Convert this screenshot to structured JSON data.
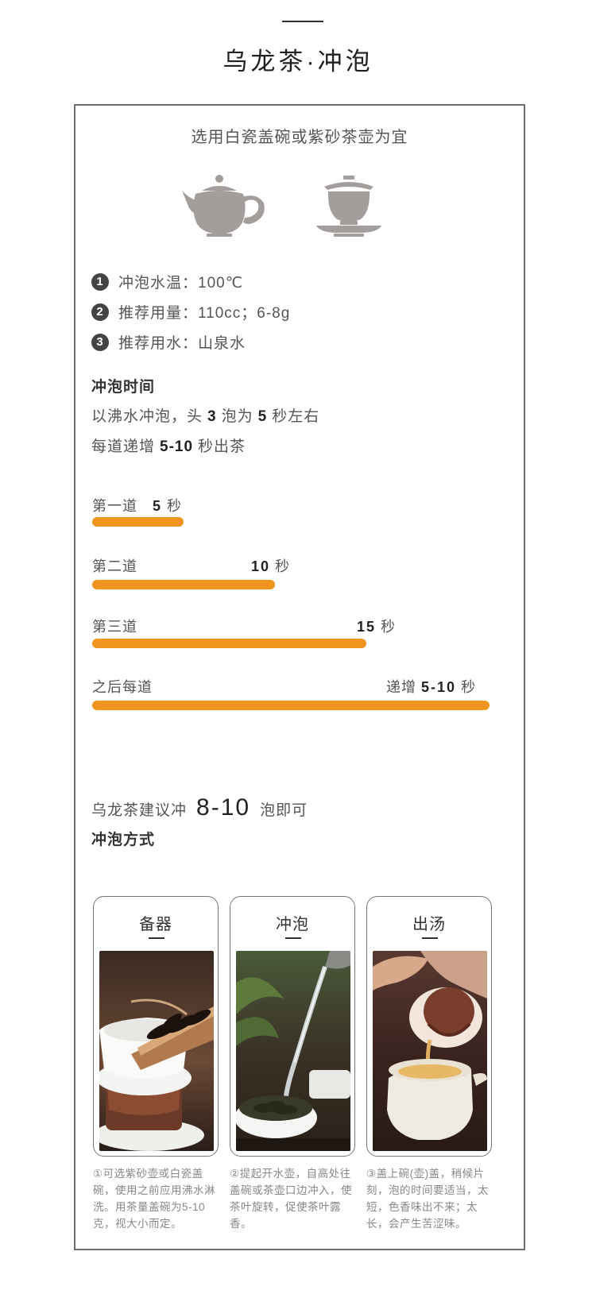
{
  "header": {
    "title": "乌龙茶·冲泡"
  },
  "intro": {
    "subtitle": "选用白瓷盖碗或紫砂茶壶为宜"
  },
  "icons": [
    "teapot-icon",
    "gaiwan-icon"
  ],
  "params": [
    {
      "num": "1",
      "text": "冲泡水温：100℃"
    },
    {
      "num": "2",
      "text": "推荐用量：110cc；6-8g"
    },
    {
      "num": "3",
      "text": "推荐用水：山泉水"
    }
  ],
  "timing": {
    "heading": "冲泡时间",
    "line1": {
      "pre": "以沸水冲泡，头",
      "n1": "3",
      "mid": "泡为",
      "n2": "5",
      "post": "秒左右"
    },
    "line2": {
      "pre": "每道递增",
      "n": "5-10",
      "post": "秒出茶"
    }
  },
  "steps": [
    {
      "label": "第一道",
      "value": "5",
      "unit": "秒",
      "prefix": ""
    },
    {
      "label": "第二道",
      "value": "10",
      "unit": "秒",
      "prefix": ""
    },
    {
      "label": "第三道",
      "value": "15",
      "unit": "秒",
      "prefix": ""
    },
    {
      "label": "之后每道",
      "value": "5-10",
      "unit": "秒",
      "prefix": "递增"
    }
  ],
  "recommend": {
    "pre": "乌龙茶建议冲",
    "big": "8-10",
    "post": "泡即可"
  },
  "method": {
    "heading": "冲泡方式",
    "cards": [
      {
        "title": "备器",
        "caption": "①可选紫砂壶或白瓷盖碗，使用之前应用沸水淋洗。用茶量盖碗为5-10克，视大小而定。"
      },
      {
        "title": "冲泡",
        "caption": "②提起开水壶，自高处往盖碗或茶壶口边冲入，使茶叶旋转，促使茶叶露香。"
      },
      {
        "title": "出汤",
        "caption": "③盖上碗(壶)盖，稍候片刻，泡的时间要适当，太短，色香味出不来；太长，会产生苦涩味。"
      }
    ]
  },
  "colors": {
    "accent": "#f2951e",
    "icon": "#a39e9c",
    "border": "#6f6f6f"
  }
}
